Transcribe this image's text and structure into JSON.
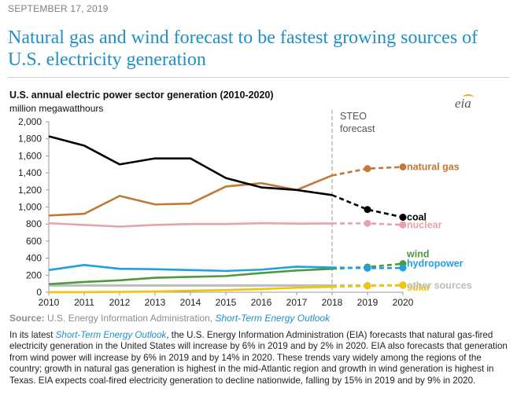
{
  "header": {
    "date": "SEPTEMBER 17, 2019",
    "headline": "Natural gas and wind forecast to be fastest growing sources of U.S. electricity generation"
  },
  "logo_text": "eia",
  "chart_data": {
    "type": "line",
    "title": "U.S. annual electric power sector generation (2010-2020)",
    "ylabel": "million megawatthours",
    "x": [
      2010,
      2011,
      2012,
      2013,
      2014,
      2015,
      2016,
      2017,
      2018,
      2019,
      2020
    ],
    "ylim": [
      0,
      2000
    ],
    "yticks": [
      0,
      200,
      400,
      600,
      800,
      1000,
      1200,
      1400,
      1600,
      1800,
      2000
    ],
    "ytick_labels": [
      "0",
      "200",
      "400",
      "600",
      "800",
      "1,000",
      "1,200",
      "1,400",
      "1,600",
      "1,800",
      "2,000"
    ],
    "forecast_start": 2018,
    "forecast_label": [
      "STEO",
      "forecast"
    ],
    "series": [
      {
        "name": "coal",
        "color": "#000000",
        "values": [
          1830,
          1720,
          1500,
          1570,
          1570,
          1340,
          1230,
          1200,
          1140,
          970,
          880
        ]
      },
      {
        "name": "natural gas",
        "color": "#c07a38",
        "values": [
          900,
          920,
          1130,
          1030,
          1040,
          1240,
          1280,
          1200,
          1370,
          1450,
          1470
        ]
      },
      {
        "name": "nuclear",
        "color": "#e6a4aa",
        "values": [
          810,
          790,
          770,
          790,
          800,
          800,
          810,
          805,
          807,
          808,
          790
        ]
      },
      {
        "name": "wind",
        "color": "#4d9a3d",
        "values": [
          95,
          120,
          140,
          170,
          180,
          190,
          225,
          255,
          275,
          295,
          335
        ]
      },
      {
        "name": "hydropower",
        "color": "#1ea2df",
        "values": [
          260,
          320,
          275,
          270,
          260,
          250,
          265,
          300,
          290,
          282,
          285
        ]
      },
      {
        "name": "solar",
        "color": "#f5c400",
        "values": [
          1,
          2,
          4,
          9,
          18,
          26,
          37,
          53,
          64,
          73,
          85
        ]
      },
      {
        "name": "other sources",
        "color": "#bdbdbd",
        "values": [
          80,
          80,
          80,
          80,
          80,
          80,
          80,
          80,
          80,
          80,
          80
        ]
      }
    ]
  },
  "source": {
    "label": "Source:",
    "text": "U.S. Energy Information Administration,",
    "link": "Short-Term Energy Outlook"
  },
  "body": {
    "pre": "In its latest",
    "link": "Short-Term Energy Outlook",
    "post": ", the U.S. Energy Information Administration (EIA) forecasts that natural gas-fired electricity generation in the United States will increase by 6% in 2019 and by 2% in 2020. EIA also forecasts that generation from wind power will increase by 6% in 2019 and by 14% in 2020. These trends vary widely among the regions of the country; growth in natural gas generation is highest in the mid-Atlantic region and growth in wind generation is highest in Texas. EIA expects coal-fired electricity generation to decline nationwide, falling by 15% in 2019 and by 9% in 2020."
  }
}
